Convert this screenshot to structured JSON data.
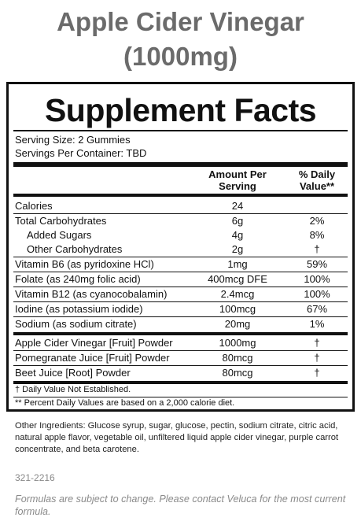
{
  "product": {
    "title_line1": "Apple Cider Vinegar",
    "title_line2": "(1000mg)"
  },
  "panel": {
    "title": "Supplement Facts",
    "serving_size": "Serving Size: 2 Gummies",
    "servings_per_container": "Servings Per Container: TBD",
    "header_amount_line1": "Amount Per",
    "header_amount_line2": "Serving",
    "header_dv_line1": "% Daily",
    "header_dv_line2": "Value**",
    "nutrients": [
      {
        "name": "Calories",
        "amount": "24",
        "dv": ""
      },
      {
        "name": "Total Carbohydrates",
        "amount": "6g",
        "dv": "2%"
      },
      {
        "name": "Added Sugars",
        "amount": "4g",
        "dv": "8%"
      },
      {
        "name": "Other Carbohydrates",
        "amount": "2g",
        "dv": "†"
      },
      {
        "name": "Vitamin B6 (as pyridoxine HCl)",
        "amount": "1mg",
        "dv": "59%"
      },
      {
        "name": "Folate (as 240mg folic acid)",
        "amount": "400mcg DFE",
        "dv": "100%"
      },
      {
        "name": "Vitamin B12 (as cyanocobalamin)",
        "amount": "2.4mcg",
        "dv": "100%"
      },
      {
        "name": "Iodine (as potassium iodide)",
        "amount": "100mcg",
        "dv": "67%"
      },
      {
        "name": "Sodium (as sodium citrate)",
        "amount": "20mg",
        "dv": "1%"
      }
    ],
    "botanicals": [
      {
        "name": "Apple Cider Vinegar [Fruit] Powder",
        "amount": "1000mg",
        "dv": "†"
      },
      {
        "name": "Pomegranate Juice [Fruit] Powder",
        "amount": "80mcg",
        "dv": "†"
      },
      {
        "name": "Beet Juice [Root] Powder",
        "amount": "80mcg",
        "dv": "†"
      }
    ],
    "footnote_dagger": "† Daily Value Not Established.",
    "footnote_dv": "** Percent Daily Values are based on a 2,000 calorie diet."
  },
  "ingredients": "Other Ingredients: Glucose syrup, sugar, glucose, pectin, sodium citrate, citric acid, natural apple flavor, vegetable oil, unfiltered liquid apple cider vinegar, purple carrot concentrate, and beta carotene.",
  "product_code": "321-2216",
  "disclaimer": "Formulas are subject to change. Please contact Veluca for the most current formula."
}
